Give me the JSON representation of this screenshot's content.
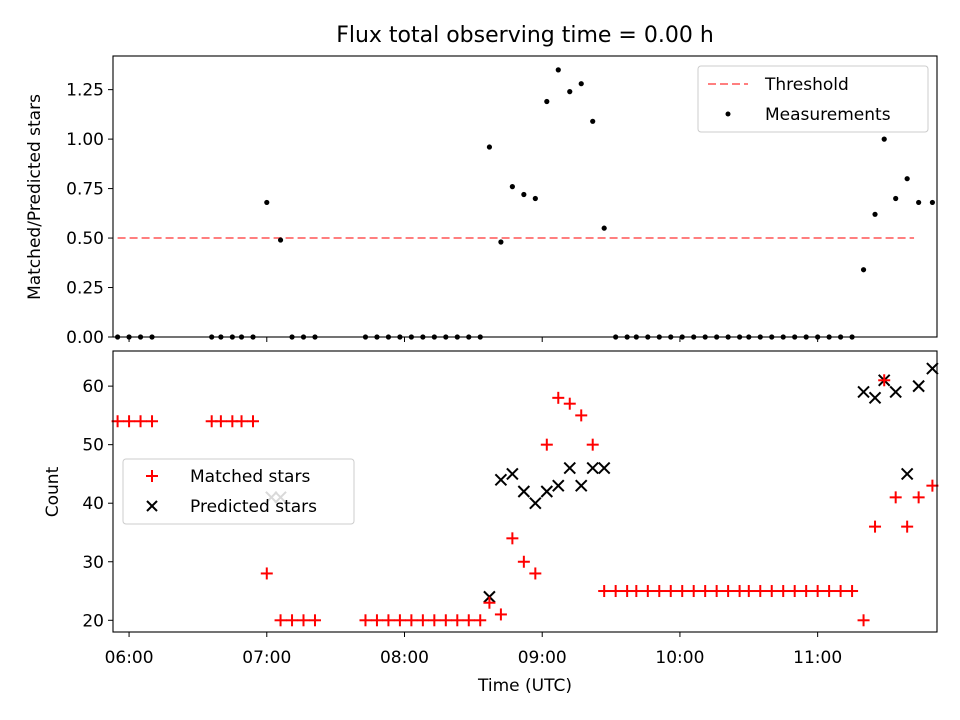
{
  "title": "Flux total observing time = 0.00 h",
  "colors": {
    "threshold": "#ff7f7f",
    "measurements": "#000000",
    "matched": "#ff0000",
    "predicted": "#000000"
  },
  "chart_data": [
    {
      "type": "scatter",
      "title": "Flux total observing time = 0.00 h",
      "xlabel": "",
      "ylabel": "Matched/Predicted stars",
      "xlim": [
        "05:53",
        "11:52"
      ],
      "ylim": [
        0,
        1.42
      ],
      "yticks": [
        "0.00",
        "0.25",
        "0.50",
        "0.75",
        "1.00",
        "1.25"
      ],
      "ytick_values": [
        0,
        0.25,
        0.5,
        0.75,
        1.0,
        1.25
      ],
      "legend_position": "upper right",
      "grid": false,
      "legend": [
        "Threshold",
        "Measurements"
      ],
      "threshold": {
        "name": "Threshold",
        "value": 0.5,
        "x_range": [
          "05:55",
          "11:42"
        ],
        "style": "dashed"
      },
      "series": [
        {
          "name": "Measurements",
          "points": [
            [
              "05:55",
              0
            ],
            [
              "06:00",
              0
            ],
            [
              "06:05",
              0
            ],
            [
              "06:10",
              0
            ],
            [
              "06:36",
              0
            ],
            [
              "06:40",
              0
            ],
            [
              "06:45",
              0
            ],
            [
              "06:49",
              0
            ],
            [
              "06:54",
              0
            ],
            [
              "07:00",
              0.68
            ],
            [
              "07:06",
              0.49
            ],
            [
              "07:11",
              0
            ],
            [
              "07:16",
              0
            ],
            [
              "07:21",
              0
            ],
            [
              "07:43",
              0
            ],
            [
              "07:48",
              0
            ],
            [
              "07:53",
              0
            ],
            [
              "07:58",
              0
            ],
            [
              "08:03",
              0
            ],
            [
              "08:08",
              0
            ],
            [
              "08:13",
              0
            ],
            [
              "08:18",
              0
            ],
            [
              "08:23",
              0
            ],
            [
              "08:28",
              0
            ],
            [
              "08:33",
              0
            ],
            [
              "08:37",
              0.96
            ],
            [
              "08:42",
              0.48
            ],
            [
              "08:47",
              0.76
            ],
            [
              "08:52",
              0.72
            ],
            [
              "08:57",
              0.7
            ],
            [
              "09:02",
              1.19
            ],
            [
              "09:07",
              1.35
            ],
            [
              "09:12",
              1.24
            ],
            [
              "09:17",
              1.28
            ],
            [
              "09:22",
              1.09
            ],
            [
              "09:27",
              0.55
            ],
            [
              "09:32",
              0
            ],
            [
              "09:37",
              0
            ],
            [
              "09:41",
              0
            ],
            [
              "09:46",
              0
            ],
            [
              "09:51",
              0
            ],
            [
              "09:56",
              0
            ],
            [
              "10:01",
              0
            ],
            [
              "10:06",
              0
            ],
            [
              "10:11",
              0
            ],
            [
              "10:16",
              0
            ],
            [
              "10:21",
              0
            ],
            [
              "10:26",
              0
            ],
            [
              "10:30",
              0
            ],
            [
              "10:35",
              0
            ],
            [
              "10:40",
              0
            ],
            [
              "10:45",
              0
            ],
            [
              "10:50",
              0
            ],
            [
              "10:55",
              0
            ],
            [
              "11:00",
              0
            ],
            [
              "11:05",
              0
            ],
            [
              "11:10",
              0
            ],
            [
              "11:15",
              0
            ],
            [
              "11:20",
              0.34
            ],
            [
              "11:25",
              0.62
            ],
            [
              "11:29",
              1.0
            ],
            [
              "11:34",
              0.7
            ],
            [
              "11:39",
              0.8
            ],
            [
              "11:44",
              0.68
            ],
            [
              "11:50",
              0.68
            ]
          ]
        }
      ]
    },
    {
      "type": "scatter",
      "title": "",
      "xlabel": "Time (UTC)",
      "ylabel": "Count",
      "xlim": [
        "05:53",
        "11:52"
      ],
      "ylim": [
        18,
        66
      ],
      "xticks": [
        "06:00",
        "07:00",
        "08:00",
        "09:00",
        "10:00",
        "11:00"
      ],
      "yticks": [
        "20",
        "30",
        "40",
        "50",
        "60"
      ],
      "ytick_values": [
        20,
        30,
        40,
        50,
        60
      ],
      "legend_position": "center left",
      "grid": false,
      "legend": [
        "Matched stars",
        "Predicted stars"
      ],
      "series": [
        {
          "name": "Matched stars",
          "marker": "plus",
          "points": [
            [
              "05:55",
              54
            ],
            [
              "06:00",
              54
            ],
            [
              "06:05",
              54
            ],
            [
              "06:10",
              54
            ],
            [
              "06:36",
              54
            ],
            [
              "06:40",
              54
            ],
            [
              "06:45",
              54
            ],
            [
              "06:49",
              54
            ],
            [
              "06:54",
              54
            ],
            [
              "07:00",
              28
            ],
            [
              "07:06",
              20
            ],
            [
              "07:11",
              20
            ],
            [
              "07:16",
              20
            ],
            [
              "07:21",
              20
            ],
            [
              "07:43",
              20
            ],
            [
              "07:48",
              20
            ],
            [
              "07:53",
              20
            ],
            [
              "07:58",
              20
            ],
            [
              "08:03",
              20
            ],
            [
              "08:08",
              20
            ],
            [
              "08:13",
              20
            ],
            [
              "08:18",
              20
            ],
            [
              "08:23",
              20
            ],
            [
              "08:28",
              20
            ],
            [
              "08:33",
              20
            ],
            [
              "08:37",
              23
            ],
            [
              "08:42",
              21
            ],
            [
              "08:47",
              34
            ],
            [
              "08:52",
              30
            ],
            [
              "08:57",
              28
            ],
            [
              "09:02",
              50
            ],
            [
              "09:07",
              58
            ],
            [
              "09:12",
              57
            ],
            [
              "09:17",
              55
            ],
            [
              "09:22",
              50
            ],
            [
              "09:27",
              25
            ],
            [
              "09:32",
              25
            ],
            [
              "09:37",
              25
            ],
            [
              "09:41",
              25
            ],
            [
              "09:46",
              25
            ],
            [
              "09:51",
              25
            ],
            [
              "09:56",
              25
            ],
            [
              "10:01",
              25
            ],
            [
              "10:06",
              25
            ],
            [
              "10:11",
              25
            ],
            [
              "10:16",
              25
            ],
            [
              "10:21",
              25
            ],
            [
              "10:26",
              25
            ],
            [
              "10:30",
              25
            ],
            [
              "10:35",
              25
            ],
            [
              "10:40",
              25
            ],
            [
              "10:45",
              25
            ],
            [
              "10:50",
              25
            ],
            [
              "10:55",
              25
            ],
            [
              "11:00",
              25
            ],
            [
              "11:05",
              25
            ],
            [
              "11:10",
              25
            ],
            [
              "11:15",
              25
            ],
            [
              "11:20",
              20
            ],
            [
              "11:25",
              36
            ],
            [
              "11:29",
              61
            ],
            [
              "11:34",
              41
            ],
            [
              "11:39",
              36
            ],
            [
              "11:44",
              41
            ],
            [
              "11:50",
              43
            ]
          ]
        },
        {
          "name": "Predicted stars",
          "marker": "x",
          "points": [
            [
              "07:02",
              41
            ],
            [
              "07:06",
              41
            ],
            [
              "08:37",
              24
            ],
            [
              "08:42",
              44
            ],
            [
              "08:47",
              45
            ],
            [
              "08:52",
              42
            ],
            [
              "08:57",
              40
            ],
            [
              "09:02",
              42
            ],
            [
              "09:07",
              43
            ],
            [
              "09:12",
              46
            ],
            [
              "09:17",
              43
            ],
            [
              "09:22",
              46
            ],
            [
              "09:27",
              46
            ],
            [
              "11:20",
              59
            ],
            [
              "11:25",
              58
            ],
            [
              "11:29",
              61
            ],
            [
              "11:34",
              59
            ],
            [
              "11:39",
              45
            ],
            [
              "11:44",
              60
            ],
            [
              "11:50",
              63
            ]
          ]
        }
      ]
    }
  ]
}
